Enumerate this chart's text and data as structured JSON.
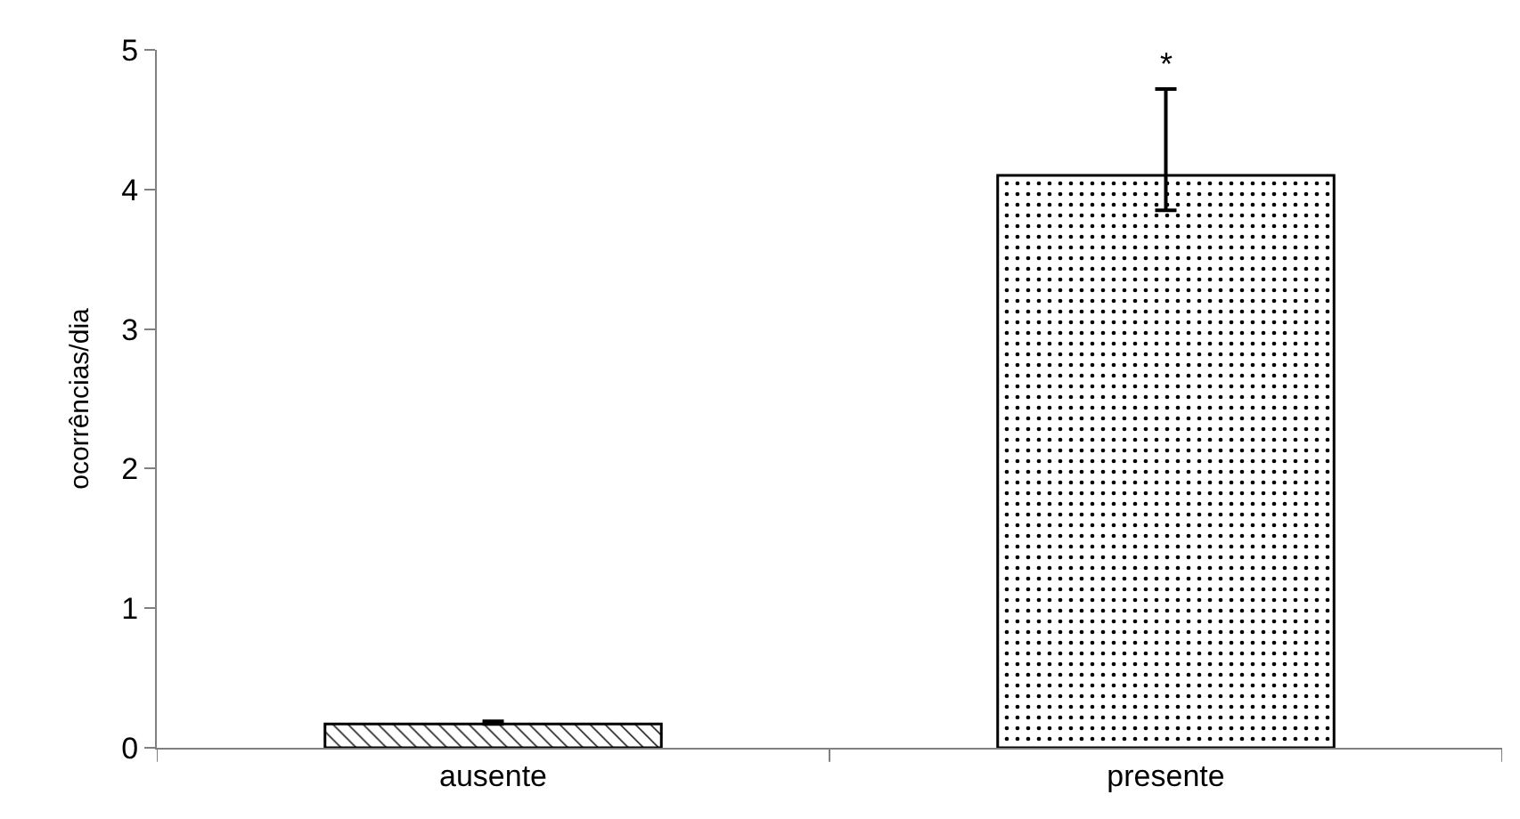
{
  "chart_data": {
    "type": "bar",
    "ylabel": "ocorrências/dia",
    "categories": [
      "ausente",
      "presente"
    ],
    "values": [
      0.17,
      4.1
    ],
    "errors": [
      [
        0.17,
        0.19
      ],
      [
        3.85,
        4.72
      ]
    ],
    "colors": [
      "#000000",
      "#000000"
    ],
    "ylim": [
      0,
      5
    ],
    "yticks": [
      0,
      1,
      2,
      3,
      4,
      5
    ],
    "grid": false,
    "annotations": [
      {
        "text": "*",
        "x": "presente",
        "y": 4.72
      }
    ]
  }
}
